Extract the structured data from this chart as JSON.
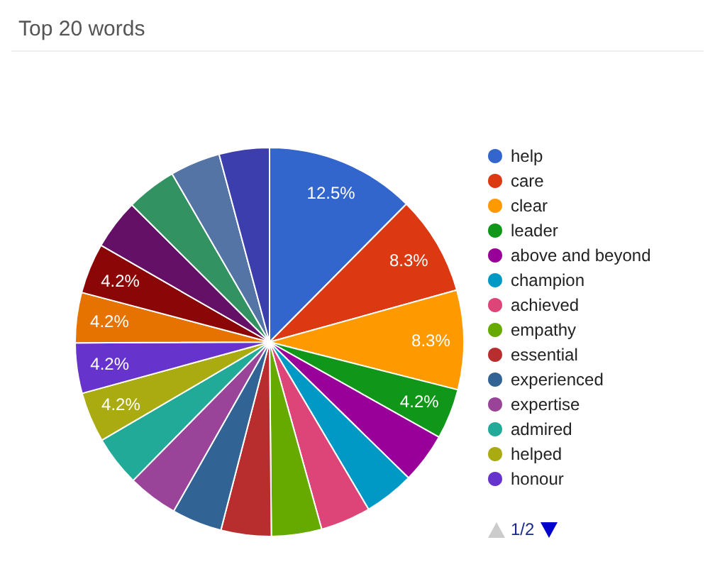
{
  "chart_data": {
    "type": "pie",
    "title": "Top 20 words",
    "categories": [
      "help",
      "care",
      "clear",
      "leader",
      "above and beyond",
      "champion",
      "achieved",
      "empathy",
      "essential",
      "experienced",
      "expertise",
      "admired",
      "helped",
      "honour",
      null,
      null,
      null,
      null,
      null,
      null
    ],
    "values": [
      12.5,
      8.3,
      8.3,
      4.2,
      4.2,
      4.2,
      4.2,
      4.2,
      4.2,
      4.2,
      4.2,
      4.2,
      4.2,
      4.2,
      4.2,
      4.2,
      4.2,
      4.2,
      4.2,
      4.2
    ],
    "colors": [
      "#3366cc",
      "#dc3912",
      "#ff9900",
      "#109618",
      "#990099",
      "#0099c6",
      "#dd4477",
      "#66aa00",
      "#b82e2e",
      "#316395",
      "#994499",
      "#22aa99",
      "#aaaa11",
      "#6633cc",
      "#e67300",
      "#8b0707",
      "#651067",
      "#329262",
      "#5574a6",
      "#3b3eac"
    ],
    "value_labels": [
      "12.5%",
      "8.3%",
      "8.3%",
      "4.2%",
      null,
      null,
      null,
      null,
      null,
      null,
      null,
      null,
      "4.2%",
      "4.2%",
      "4.2%",
      "4.2%",
      null,
      null,
      null,
      null
    ],
    "legend": "right",
    "annotations": [
      "1/2"
    ]
  }
}
